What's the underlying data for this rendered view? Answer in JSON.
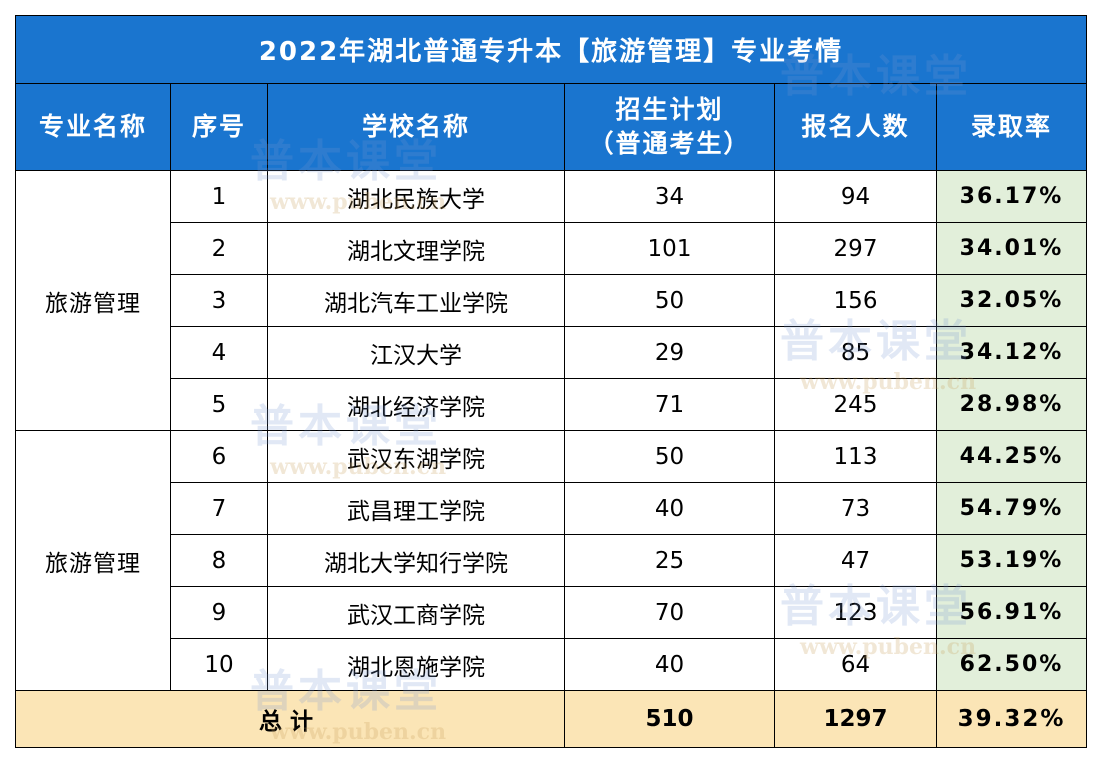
{
  "table": {
    "title": "2022年湖北普通专升本【旅游管理】专业考情",
    "headers": {
      "major": "专业名称",
      "index": "序号",
      "school": "学校名称",
      "plan_line1": "招生计划",
      "plan_line2": "（普通考生）",
      "applicants": "报名人数",
      "rate": "录取率"
    },
    "group1_major": "旅游管理",
    "group2_major": "旅游管理",
    "rows": [
      {
        "index": "1",
        "school": "湖北民族大学",
        "plan": "34",
        "applicants": "94",
        "rate": "36.17%"
      },
      {
        "index": "2",
        "school": "湖北文理学院",
        "plan": "101",
        "applicants": "297",
        "rate": "34.01%"
      },
      {
        "index": "3",
        "school": "湖北汽车工业学院",
        "plan": "50",
        "applicants": "156",
        "rate": "32.05%"
      },
      {
        "index": "4",
        "school": "江汉大学",
        "plan": "29",
        "applicants": "85",
        "rate": "34.12%"
      },
      {
        "index": "5",
        "school": "湖北经济学院",
        "plan": "71",
        "applicants": "245",
        "rate": "28.98%"
      },
      {
        "index": "6",
        "school": "武汉东湖学院",
        "plan": "50",
        "applicants": "113",
        "rate": "44.25%"
      },
      {
        "index": "7",
        "school": "武昌理工学院",
        "plan": "40",
        "applicants": "73",
        "rate": "54.79%"
      },
      {
        "index": "8",
        "school": "湖北大学知行学院",
        "plan": "25",
        "applicants": "47",
        "rate": "53.19%"
      },
      {
        "index": "9",
        "school": "武汉工商学院",
        "plan": "70",
        "applicants": "123",
        "rate": "56.91%"
      },
      {
        "index": "10",
        "school": "湖北恩施学院",
        "plan": "40",
        "applicants": "64",
        "rate": "62.50%"
      }
    ],
    "total": {
      "label": "总计",
      "plan": "510",
      "applicants": "1297",
      "rate": "39.32%"
    }
  },
  "watermark": {
    "brand": "普本课堂",
    "url": "www.puben.cn"
  },
  "colors": {
    "header_blue": "#1a75cf",
    "rate_green": "#e2efda",
    "total_gold": "#fbe5b6"
  }
}
